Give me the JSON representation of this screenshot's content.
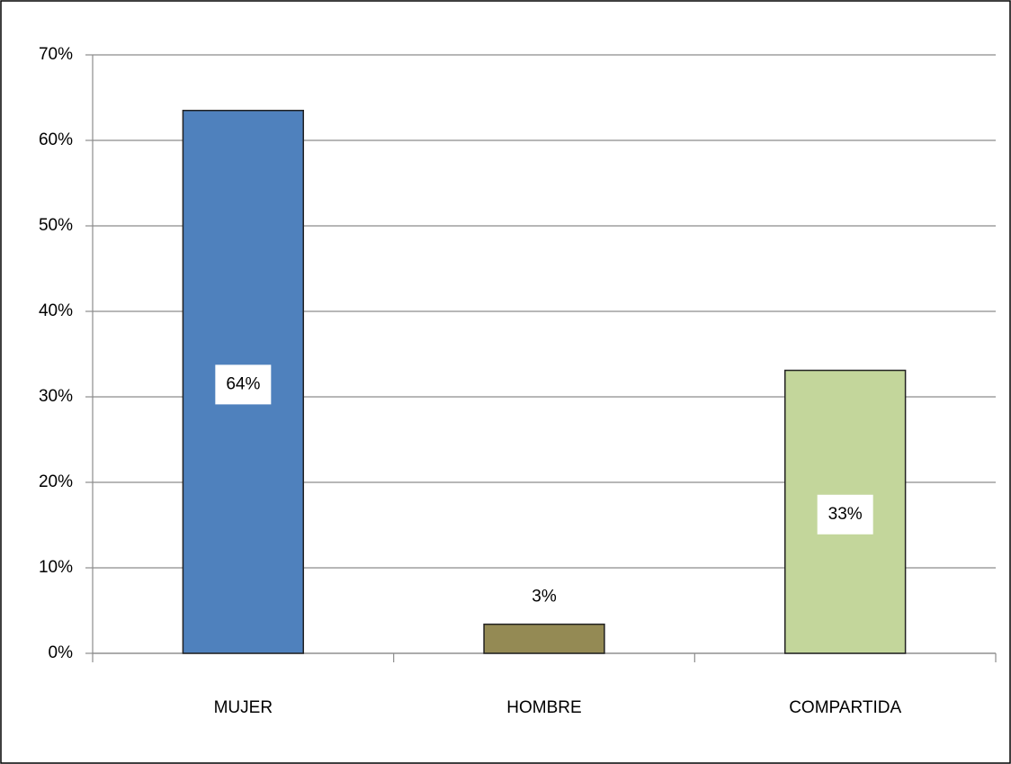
{
  "chart_data": {
    "type": "bar",
    "categories": [
      "MUJER",
      "HOMBRE",
      "COMPARTIDA"
    ],
    "values": [
      63.5,
      3.4,
      33.1
    ],
    "value_labels": [
      "64%",
      "3%",
      "33%"
    ],
    "colors": [
      "#4f81bd",
      "#948a54",
      "#c3d69b"
    ],
    "ylim": [
      0,
      70
    ],
    "yticks": [
      {
        "value": 0,
        "label": "0%"
      },
      {
        "value": 10,
        "label": "10%"
      },
      {
        "value": 20,
        "label": "20%"
      },
      {
        "value": 30,
        "label": "30%"
      },
      {
        "value": 40,
        "label": "40%"
      },
      {
        "value": 50,
        "label": "50%"
      },
      {
        "value": 60,
        "label": "60%"
      },
      {
        "value": 70,
        "label": "70%"
      }
    ],
    "grid": true
  }
}
